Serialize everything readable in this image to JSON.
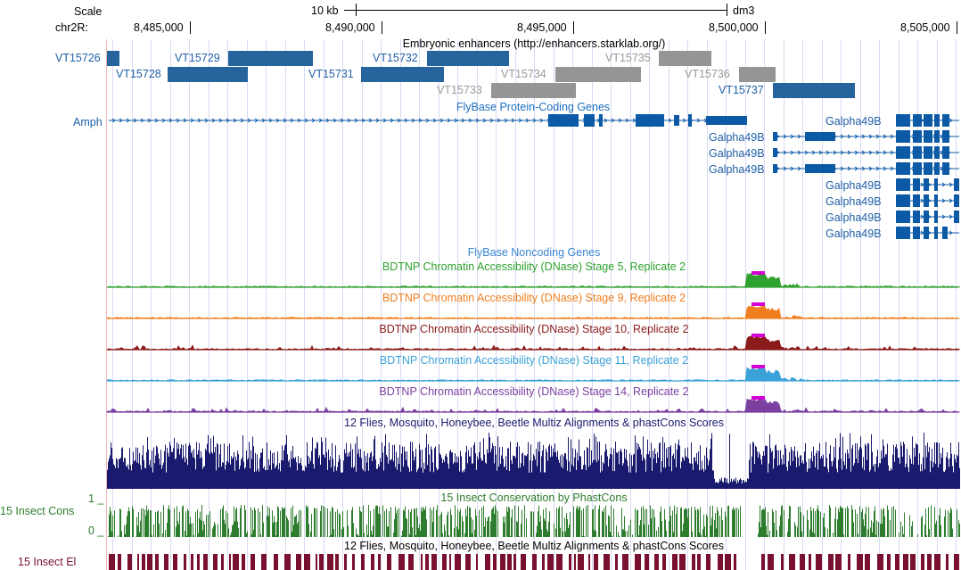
{
  "header": {
    "scale_label": "Scale",
    "scale_value": "10 kb",
    "assembly": "dm3",
    "chrom_label": "chr2R:",
    "positions": [
      "8,485,000",
      "8,490,000",
      "8,495,000",
      "8,500,000",
      "8,505,000"
    ]
  },
  "tracks": {
    "enhancers": {
      "title": "Embryonic enhancers (http://enhancers.starklab.org/)",
      "items": [
        {
          "name": "VT15726",
          "strong": true
        },
        {
          "name": "VT15728",
          "strong": true
        },
        {
          "name": "VT15729",
          "strong": true
        },
        {
          "name": "VT15731",
          "strong": true
        },
        {
          "name": "VT15732",
          "strong": true
        },
        {
          "name": "VT15733",
          "strong": false
        },
        {
          "name": "VT15734",
          "strong": false
        },
        {
          "name": "VT15735",
          "strong": false
        },
        {
          "name": "VT15736",
          "strong": false
        },
        {
          "name": "VT15737",
          "strong": true
        }
      ]
    },
    "flybase_genes": {
      "title": "FlyBase Protein-Coding Genes",
      "genes": [
        "Amph",
        "Galpha49B",
        "Galpha49B",
        "Galpha49B",
        "Galpha49B",
        "Galpha49B",
        "Galpha49B",
        "Galpha49B",
        "Galpha49B"
      ]
    },
    "noncoding": {
      "title": "FlyBase Noncoding Genes"
    },
    "dnase": [
      {
        "title": "BDTNP Chromatin Accessibility (DNase) Stage 5, Replicate 2",
        "color": "#2fa12f"
      },
      {
        "title": "BDTNP Chromatin Accessibility (DNase) Stage 9, Replicate 2",
        "color": "#f07e1e"
      },
      {
        "title": "BDTNP Chromatin Accessibility (DNase) Stage 10, Replicate 2",
        "color": "#8b1a1a"
      },
      {
        "title": "BDTNP Chromatin Accessibility (DNase) Stage 11, Replicate 2",
        "color": "#3aa2d8"
      },
      {
        "title": "BDTNP Chromatin Accessibility (DNase) Stage 14, Replicate 2",
        "color": "#7b3fa0"
      }
    ],
    "multiz": {
      "title": "12 Flies, Mosquito, Honeybee, Beetle Multiz Alignments & phastCons Scores",
      "color": "#1a1a6e"
    },
    "phastcons": {
      "title": "15 Insect Conservation by PhastCons",
      "left_label": "15 Insect Cons",
      "ymax": "1 _",
      "ymin": "0 _",
      "color": "#2e7d2e"
    },
    "elements": {
      "title": "12 Flies, Mosquito, Honeybee, Beetle Multiz Alignments & phastCons Scores",
      "left_label": "15 Insect El",
      "color": "#7a1030"
    }
  }
}
